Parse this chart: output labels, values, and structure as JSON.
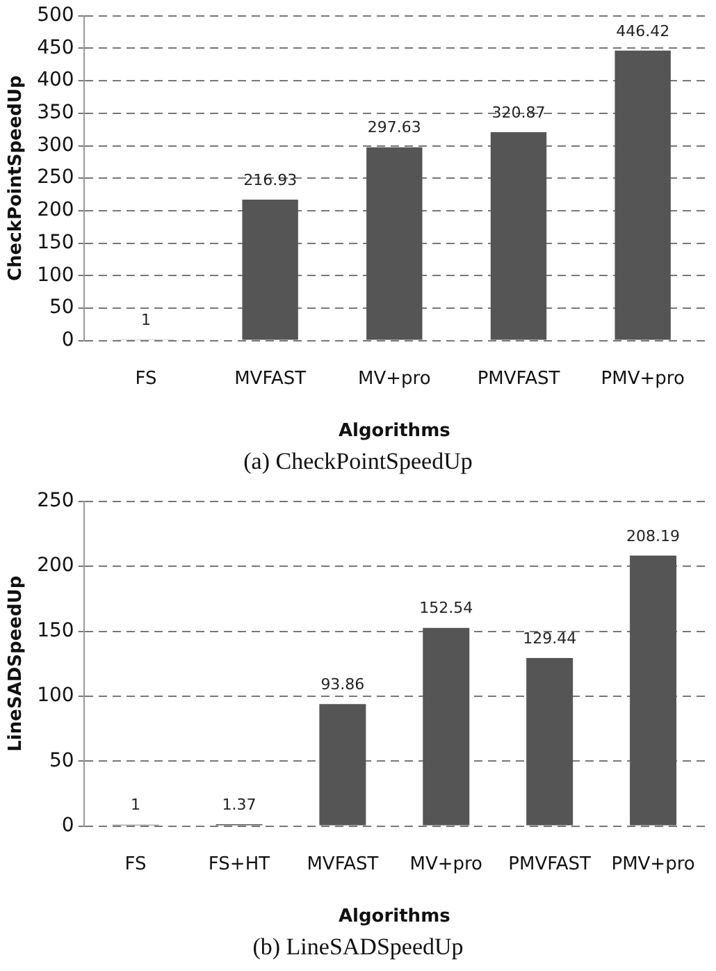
{
  "chart_data": [
    {
      "type": "bar",
      "xlabel": "Algorithms",
      "ylabel": "CheckPointSpeedUp",
      "categories": [
        "FS",
        "MVFAST",
        "MV+pro",
        "PMVFAST",
        "PMV+pro"
      ],
      "values": [
        1,
        216.93,
        297.63,
        320.87,
        446.42
      ],
      "color": "#555555",
      "ylim": [
        0,
        500
      ],
      "yticks": [
        0,
        50,
        100,
        150,
        200,
        250,
        300,
        350,
        400,
        450,
        500
      ],
      "grid": "y",
      "data_labels": true,
      "annotations": [
        "(a)  CheckPointSpeedUp"
      ]
    },
    {
      "type": "bar",
      "xlabel": "Algorithms",
      "ylabel": "LineSADSpeedUp",
      "categories": [
        "FS",
        "FS+HT",
        "MVFAST",
        "MV+pro",
        "PMVFAST",
        "PMV+pro"
      ],
      "values": [
        1,
        1.37,
        93.86,
        152.54,
        129.44,
        208.19
      ],
      "color": "#555555",
      "ylim": [
        0,
        250
      ],
      "yticks": [
        0,
        50,
        100,
        150,
        200,
        250
      ],
      "grid": "y",
      "data_labels": true,
      "annotations": [
        "(b)  LineSADSpeedUp"
      ]
    }
  ]
}
